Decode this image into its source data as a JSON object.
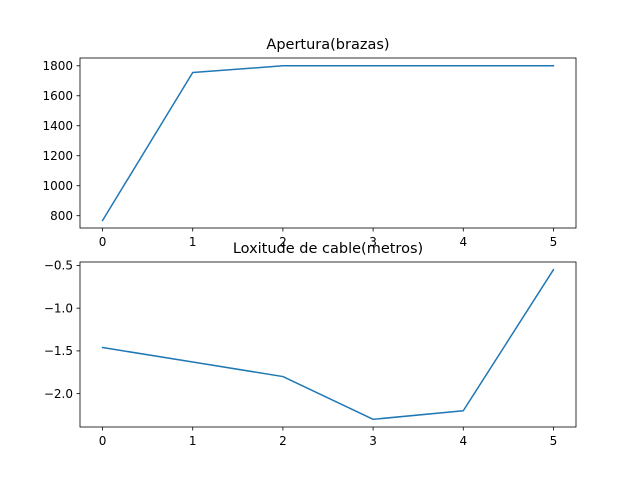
{
  "chart_data": [
    {
      "type": "line",
      "title": "Apertura(brazas)",
      "x": [
        0,
        1,
        2,
        3,
        4,
        5
      ],
      "series": [
        {
          "name": "Apertura(brazas)",
          "values": [
            768,
            1755,
            1800,
            1800,
            1800,
            1800
          ]
        }
      ],
      "xlim": [
        -0.25,
        5.25
      ],
      "ylim": [
        718,
        1852
      ],
      "xticks": [
        0,
        1,
        2,
        3,
        4,
        5
      ],
      "xtick_labels": [
        "0",
        "1",
        "2",
        "3",
        "4",
        "5"
      ],
      "yticks": [
        800,
        1000,
        1200,
        1400,
        1600,
        1800
      ],
      "ytick_labels": [
        "800",
        "1000",
        "1200",
        "1400",
        "1600",
        "1800"
      ],
      "xlabel": "",
      "ylabel": ""
    },
    {
      "type": "line",
      "title": "Loxitude de cable(metros)",
      "x": [
        0,
        1,
        2,
        3,
        4,
        5
      ],
      "series": [
        {
          "name": "Loxitude de cable(metros)",
          "values": [
            -1.46,
            -1.63,
            -1.8,
            -2.3,
            -2.2,
            -0.55
          ]
        }
      ],
      "xlim": [
        -0.25,
        5.25
      ],
      "ylim": [
        -2.39,
        -0.46
      ],
      "xticks": [
        0,
        1,
        2,
        3,
        4,
        5
      ],
      "xtick_labels": [
        "0",
        "1",
        "2",
        "3",
        "4",
        "5"
      ],
      "yticks": [
        -2.0,
        -1.5,
        -1.0,
        -0.5
      ],
      "ytick_labels": [
        "−2.0",
        "−1.5",
        "−1.0",
        "−0.5"
      ],
      "xlabel": "",
      "ylabel": ""
    }
  ],
  "colors": {
    "line": "#1f77b4"
  }
}
